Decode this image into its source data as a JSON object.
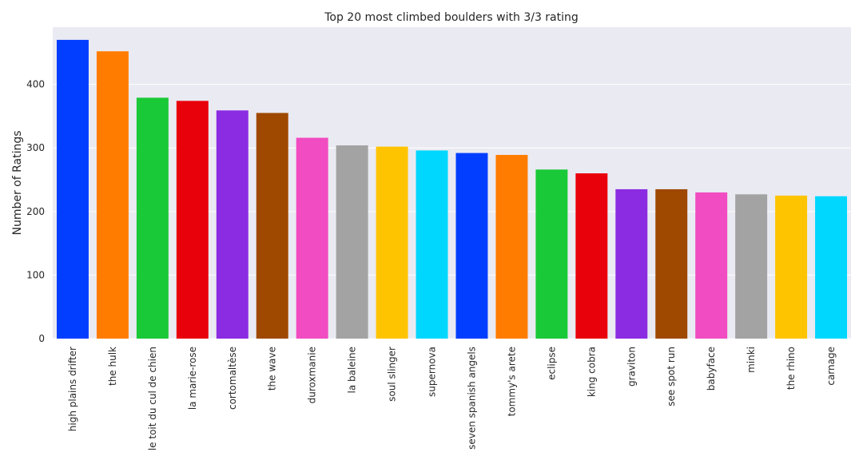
{
  "chart_data": {
    "type": "bar",
    "title": "Top 20 most climbed boulders with 3/3 rating",
    "xlabel": "",
    "ylabel": "Number of Ratings",
    "ylim": [
      0,
      490
    ],
    "yticks": [
      0,
      100,
      200,
      300,
      400
    ],
    "grid": true,
    "categories": [
      "high plains drifter",
      "the hulk",
      "le toit du cul de chien",
      "la marie-rose",
      "cortomaltèse",
      "the wave",
      "duroxmanie",
      "la baleine",
      "soul slinger",
      "supernova",
      "seven spanish angels",
      "tommy's arete",
      "eclipse",
      "king cobra",
      "graviton",
      "see spot run",
      "babyface",
      "minki",
      "the rhino",
      "carnage"
    ],
    "values": [
      470,
      452,
      379,
      374,
      359,
      355,
      316,
      304,
      302,
      296,
      292,
      289,
      266,
      260,
      235,
      235,
      230,
      227,
      225,
      224
    ],
    "colors": [
      "#023eff",
      "#ff7c00",
      "#1ac938",
      "#e8000b",
      "#8b2be2",
      "#9f4800",
      "#f14cc1",
      "#a3a3a3",
      "#ffc400",
      "#00d7ff",
      "#023eff",
      "#ff7c00",
      "#1ac938",
      "#e8000b",
      "#8b2be2",
      "#9f4800",
      "#f14cc1",
      "#a3a3a3",
      "#ffc400",
      "#00d7ff"
    ]
  },
  "style": {
    "plot_background": "#eaeaf2",
    "grid_color": "#ffffff"
  }
}
